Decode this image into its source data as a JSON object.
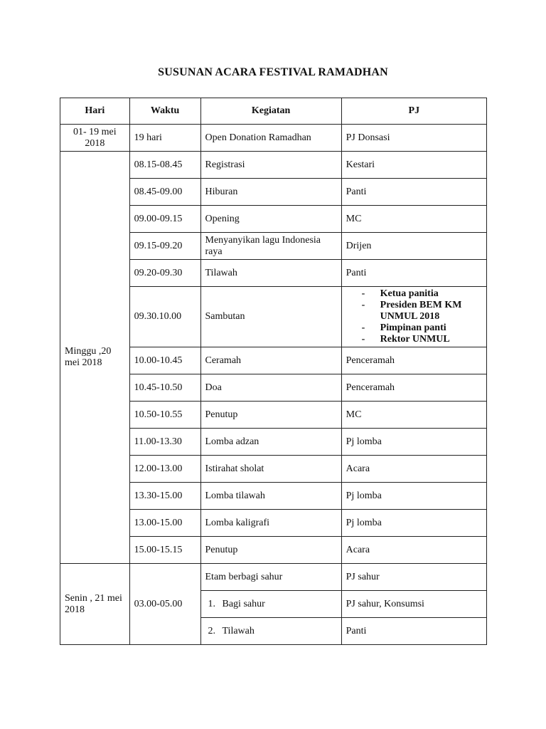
{
  "title": "SUSUNAN ACARA FESTIVAL RAMADHAN",
  "headers": [
    "Hari",
    "Waktu",
    "Kegiatan",
    "PJ"
  ],
  "groups": [
    {
      "hari": "01- 19 mei 2018",
      "rows": [
        {
          "waktu": "19 hari",
          "kegiatan": "Open Donation Ramadhan",
          "pj": "PJ Donsasi"
        }
      ]
    },
    {
      "hari": "Minggu ,20 mei 2018",
      "rows": [
        {
          "waktu": "08.15-08.45",
          "kegiatan": "Registrasi",
          "pj": "Kestari"
        },
        {
          "waktu": "08.45-09.00",
          "kegiatan": "Hiburan",
          "pj": "Panti"
        },
        {
          "waktu": "09.00-09.15",
          "kegiatan": "Opening",
          "pj": "MC"
        },
        {
          "waktu": "09.15-09.20",
          "kegiatan": "Menyanyikan lagu Indonesia raya",
          "pj": "Drijen"
        },
        {
          "waktu": "09.20-09.30",
          "kegiatan": "Tilawah",
          "pj": "Panti"
        },
        {
          "waktu": "09.30.10.00",
          "kegiatan": "Sambutan",
          "pj_list": [
            "Ketua panitia",
            "Presiden BEM KM UNMUL 2018",
            "Pimpinan panti",
            "Rektor UNMUL"
          ]
        },
        {
          "waktu": "10.00-10.45",
          "kegiatan": "Ceramah",
          "pj": "Penceramah"
        },
        {
          "waktu": "10.45-10.50",
          "kegiatan": "Doa",
          "pj": "Penceramah"
        },
        {
          "waktu": "10.50-10.55",
          "kegiatan": "Penutup",
          "pj": "MC"
        },
        {
          "waktu": "11.00-13.30",
          "kegiatan": "Lomba adzan",
          "pj": "Pj lomba"
        },
        {
          "waktu": "12.00-13.00",
          "kegiatan": "Istirahat sholat",
          "pj": "Acara"
        },
        {
          "waktu": "13.30-15.00",
          "kegiatan": "Lomba tilawah",
          "pj": "Pj lomba"
        },
        {
          "waktu": "13.00-15.00",
          "kegiatan": "Lomba kaligrafi",
          "pj": "Pj lomba"
        },
        {
          "waktu": "15.00-15.15",
          "kegiatan": "Penutup",
          "pj": "Acara"
        }
      ]
    },
    {
      "hari": "Senin , 21 mei 2018",
      "waktu_merged": "03.00-05.00",
      "rows": [
        {
          "kegiatan": "Etam berbagi sahur",
          "pj": "PJ sahur"
        },
        {
          "num": "1.",
          "kegiatan": "Bagi sahur",
          "pj": "PJ sahur, Konsumsi"
        },
        {
          "num": "2.",
          "kegiatan": "Tilawah",
          "pj": "Panti"
        }
      ]
    }
  ]
}
